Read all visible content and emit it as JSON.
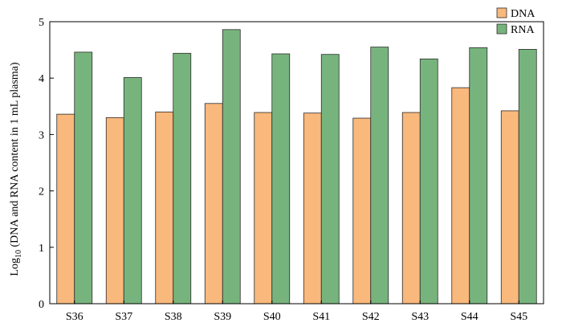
{
  "chart_data": {
    "type": "bar",
    "title": "",
    "xlabel": "",
    "ylabel": {
      "prefix": "Log",
      "subscript": "10",
      "suffix": " (DNA and RNA content in 1 mL plasma)"
    },
    "categories": [
      "S36",
      "S37",
      "S38",
      "S39",
      "S40",
      "S41",
      "S42",
      "S43",
      "S44",
      "S45"
    ],
    "series": [
      {
        "name": "DNA",
        "color": "#f9b87c",
        "values": [
          3.36,
          3.3,
          3.4,
          3.55,
          3.39,
          3.38,
          3.29,
          3.39,
          3.83,
          3.42
        ]
      },
      {
        "name": "RNA",
        "color": "#77b47d",
        "values": [
          4.46,
          4.01,
          4.44,
          4.86,
          4.43,
          4.42,
          4.55,
          4.34,
          4.54,
          4.51
        ]
      }
    ],
    "ylim": [
      0,
      5
    ],
    "yticks": [
      0,
      1,
      2,
      3,
      4,
      5
    ],
    "grid": false,
    "legend": "top-right"
  }
}
